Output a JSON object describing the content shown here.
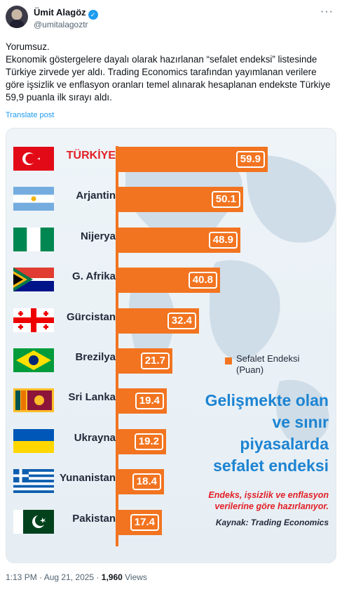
{
  "author": {
    "name": "Ümit Alagöz",
    "handle": "@umitalagoztr",
    "verified": true
  },
  "post": {
    "line1": "Yorumsuz.",
    "line2": "Ekonomik göstergelere dayalı olarak hazırlanan “sefalet endeksi” listesinde Türkiye zirvede yer aldı. Trading Economics tarafından yayımlanan verilere göre işsizlik ve enflasyon oranları temel alınarak hesaplanan endekste Türkiye 59,9 puanla ilk sırayı aldı.",
    "translate": "Translate post"
  },
  "chart_data": {
    "type": "bar",
    "orientation": "horizontal",
    "categories": [
      "TÜRKİYE",
      "Arjantin",
      "Nijerya",
      "G. Afrika",
      "Gürcistan",
      "Brezilya",
      "Sri Lanka",
      "Ukrayna",
      "Yunanistan",
      "Pakistan"
    ],
    "values": [
      59.9,
      50.1,
      48.9,
      40.8,
      32.4,
      21.7,
      19.4,
      19.2,
      18.4,
      17.4
    ],
    "value_labels": [
      "59.9",
      "50.1",
      "48.9",
      "40.8",
      "32.4",
      "21.7",
      "19.4",
      "19.2",
      "18.4",
      "17.4"
    ],
    "legend": "Sefalet Endeksi (Puan)",
    "title": "Gelişmekte olan ve sınır piyasalarda sefalet endeksi",
    "subtitle": "Endeks, işsizlik ve enflasyon verilerine göre hazırlanıyor.",
    "source": "Kaynak: Trading Economics",
    "bar_color": "#f27420",
    "xlim": [
      0,
      62
    ]
  },
  "flags": [
    "tr-flag",
    "ar-flag",
    "ng-flag",
    "za-flag",
    "ge-flag",
    "br-flag",
    "lk-flag",
    "ua-flag",
    "gr-flag",
    "pk-flag"
  ],
  "meta": {
    "time": "1:13 PM · Aug 21, 2025 · ",
    "views": "1,960",
    "views_label": " Views"
  },
  "colors": {
    "link": "#1d9bf0",
    "accent": "#f27420",
    "headline": "#1d84d2",
    "highlight": "#e21f26"
  }
}
